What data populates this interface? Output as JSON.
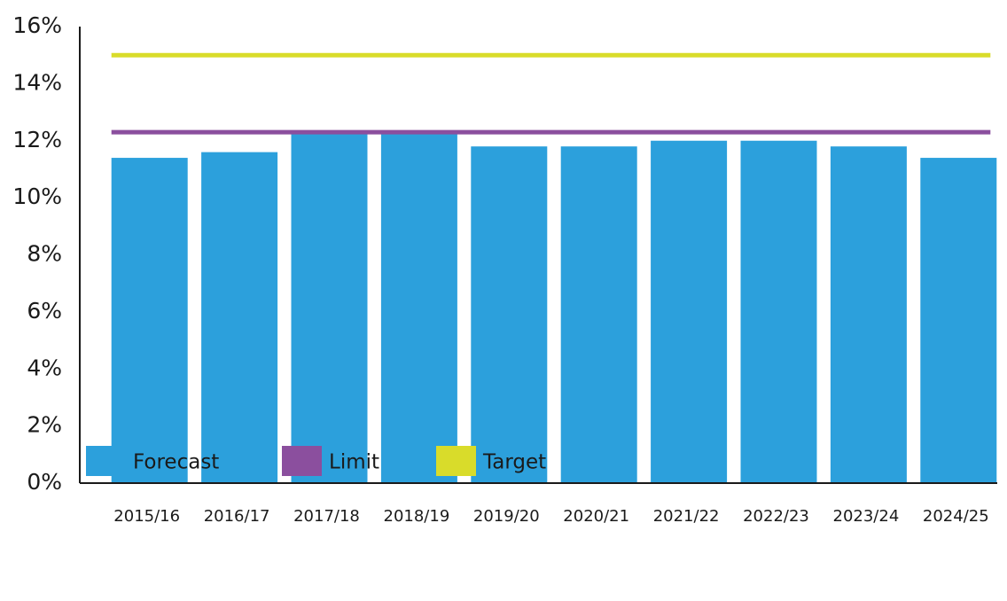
{
  "chart_data": {
    "type": "bar",
    "categories": [
      "2015/16",
      "2016/17",
      "2017/18",
      "2018/19",
      "2019/20",
      "2020/21",
      "2021/22",
      "2022/23",
      "2023/24",
      "2024/25"
    ],
    "series": [
      {
        "name": "Forecast",
        "type": "bar",
        "color": "#2ca0dc",
        "values": [
          11.4,
          11.6,
          12.3,
          12.3,
          11.8,
          11.8,
          12.0,
          12.0,
          11.8,
          11.4
        ]
      },
      {
        "name": "Limit",
        "type": "line",
        "color": "#8b4f9e",
        "values": [
          12.3,
          12.3,
          12.3,
          12.3,
          12.3,
          12.3,
          12.3,
          12.3,
          12.3,
          12.3
        ]
      },
      {
        "name": "Target",
        "type": "line",
        "color": "#d9dc2a",
        "values": [
          15.0,
          15.0,
          15.0,
          15.0,
          15.0,
          15.0,
          15.0,
          15.0,
          15.0,
          15.0
        ]
      }
    ],
    "ylim": [
      0,
      16
    ],
    "yticks": [
      {
        "value": 0,
        "label": "0%"
      },
      {
        "value": 2,
        "label": "2%"
      },
      {
        "value": 4,
        "label": "4%"
      },
      {
        "value": 6,
        "label": "6%"
      },
      {
        "value": 8,
        "label": "8%"
      },
      {
        "value": 10,
        "label": "10%"
      },
      {
        "value": 12,
        "label": "12%"
      },
      {
        "value": 14,
        "label": "14%"
      },
      {
        "value": 16,
        "label": "16%"
      }
    ],
    "grid": false,
    "legend": "bottom-left"
  }
}
